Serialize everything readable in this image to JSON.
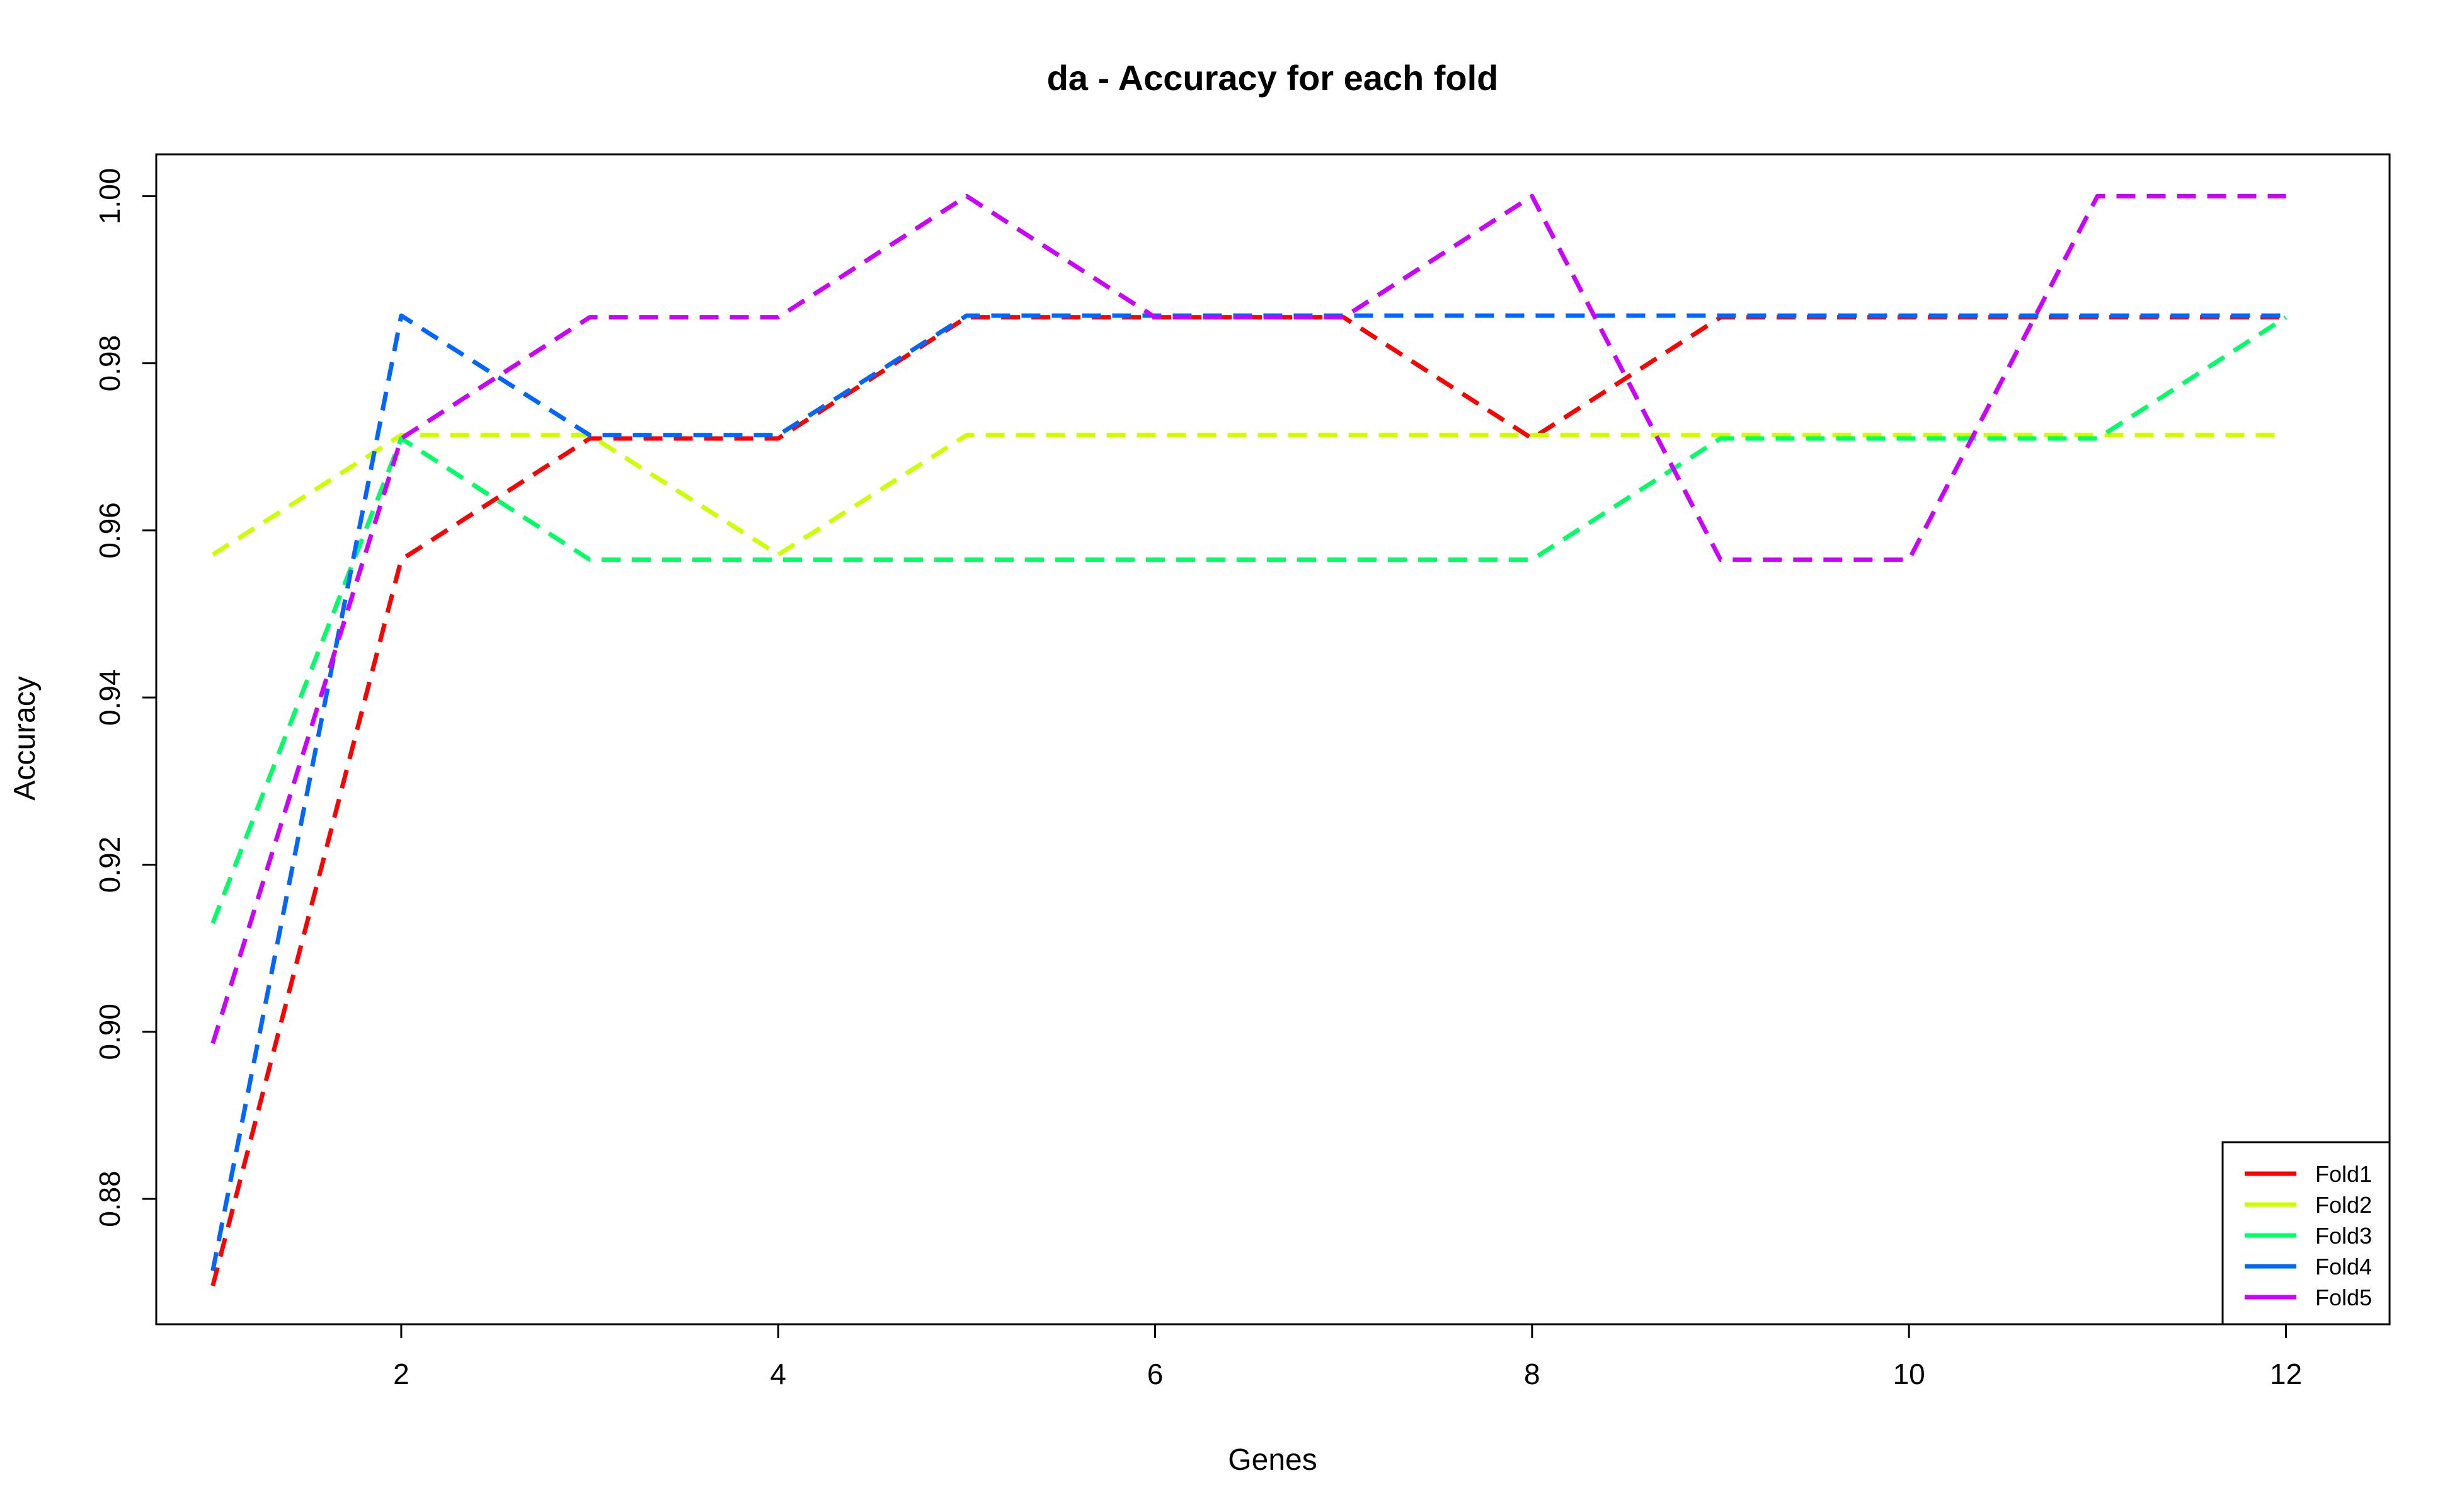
{
  "chart_data": {
    "type": "line",
    "title": "da - Accuracy for each fold",
    "xlabel": "Genes",
    "ylabel": "Accuracy",
    "xlim": [
      0.7,
      12.55
    ],
    "ylim": [
      0.865,
      1.005
    ],
    "xticks": [
      2,
      4,
      6,
      8,
      10,
      12
    ],
    "yticks": [
      0.88,
      0.9,
      0.92,
      0.94,
      0.96,
      0.98,
      1.0
    ],
    "ytick_labels": [
      "0.88",
      "0.90",
      "0.92",
      "0.94",
      "0.96",
      "0.98",
      "1.00"
    ],
    "line_style": "dashed",
    "legend_position": "bottom-right",
    "x": [
      1,
      2,
      3,
      4,
      5,
      6,
      7,
      8,
      9,
      10,
      11,
      12
    ],
    "series": [
      {
        "name": "Fold1",
        "color": "#ff0000",
        "values": [
          0.8696,
          0.9565,
          0.971,
          0.971,
          0.9855,
          0.9855,
          0.9855,
          0.971,
          0.9855,
          0.9855,
          0.9855,
          0.9855
        ]
      },
      {
        "name": "Fold2",
        "color": "#ccff00",
        "values": [
          0.9571,
          0.9714,
          0.9714,
          0.9571,
          0.9714,
          0.9714,
          0.9714,
          0.9714,
          0.9714,
          0.9714,
          0.9714,
          0.9714
        ]
      },
      {
        "name": "Fold3",
        "color": "#00ff66",
        "values": [
          0.913,
          0.971,
          0.9565,
          0.9565,
          0.9565,
          0.9565,
          0.9565,
          0.9565,
          0.971,
          0.971,
          0.971,
          0.9855
        ]
      },
      {
        "name": "Fold4",
        "color": "#0066ff",
        "values": [
          0.8714,
          0.9857,
          0.9714,
          0.9714,
          0.9857,
          0.9857,
          0.9857,
          0.9857,
          0.9857,
          0.9857,
          0.9857,
          0.9857
        ]
      },
      {
        "name": "Fold5",
        "color": "#cc00ff",
        "values": [
          0.8986,
          0.971,
          0.9855,
          0.9855,
          1.0,
          0.9855,
          0.9855,
          1.0,
          0.9565,
          0.9565,
          1.0,
          1.0
        ]
      }
    ]
  }
}
